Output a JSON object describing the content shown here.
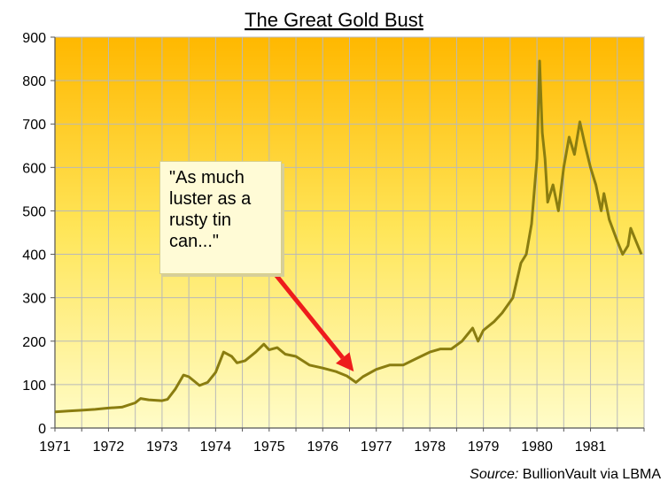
{
  "chart_data": {
    "type": "line",
    "title": "The Great Gold Bust",
    "xlabel": "",
    "ylabel": "",
    "xlim": [
      1971,
      1982
    ],
    "ylim": [
      0,
      900
    ],
    "x_ticks": [
      "1971",
      "1972",
      "1973",
      "1974",
      "1975",
      "1976",
      "1977",
      "1978",
      "1979",
      "1980",
      "1981"
    ],
    "y_ticks": [
      "0",
      "100",
      "200",
      "300",
      "400",
      "500",
      "600",
      "700",
      "800",
      "900"
    ],
    "grid": true,
    "series": [
      {
        "color": "#8a7d10",
        "points": [
          [
            1971.0,
            37
          ],
          [
            1971.25,
            39
          ],
          [
            1971.5,
            41
          ],
          [
            1971.75,
            43
          ],
          [
            1972.0,
            46
          ],
          [
            1972.25,
            48
          ],
          [
            1972.5,
            58
          ],
          [
            1972.6,
            68
          ],
          [
            1972.75,
            65
          ],
          [
            1973.0,
            63
          ],
          [
            1973.1,
            66
          ],
          [
            1973.25,
            90
          ],
          [
            1973.4,
            122
          ],
          [
            1973.5,
            118
          ],
          [
            1973.7,
            98
          ],
          [
            1973.85,
            105
          ],
          [
            1974.0,
            128
          ],
          [
            1974.15,
            175
          ],
          [
            1974.3,
            165
          ],
          [
            1974.4,
            150
          ],
          [
            1974.55,
            155
          ],
          [
            1974.75,
            175
          ],
          [
            1974.9,
            193
          ],
          [
            1975.0,
            180
          ],
          [
            1975.15,
            185
          ],
          [
            1975.3,
            170
          ],
          [
            1975.5,
            165
          ],
          [
            1975.75,
            145
          ],
          [
            1976.0,
            138
          ],
          [
            1976.25,
            130
          ],
          [
            1976.45,
            120
          ],
          [
            1976.62,
            105
          ],
          [
            1976.75,
            118
          ],
          [
            1977.0,
            135
          ],
          [
            1977.25,
            145
          ],
          [
            1977.5,
            145
          ],
          [
            1977.75,
            160
          ],
          [
            1978.0,
            175
          ],
          [
            1978.2,
            182
          ],
          [
            1978.4,
            182
          ],
          [
            1978.6,
            200
          ],
          [
            1978.8,
            230
          ],
          [
            1978.9,
            200
          ],
          [
            1979.0,
            225
          ],
          [
            1979.2,
            245
          ],
          [
            1979.35,
            265
          ],
          [
            1979.55,
            300
          ],
          [
            1979.7,
            380
          ],
          [
            1979.8,
            400
          ],
          [
            1979.9,
            470
          ],
          [
            1980.0,
            620
          ],
          [
            1980.05,
            845
          ],
          [
            1980.1,
            680
          ],
          [
            1980.15,
            620
          ],
          [
            1980.2,
            520
          ],
          [
            1980.3,
            560
          ],
          [
            1980.4,
            500
          ],
          [
            1980.5,
            600
          ],
          [
            1980.6,
            670
          ],
          [
            1980.7,
            630
          ],
          [
            1980.8,
            705
          ],
          [
            1980.9,
            650
          ],
          [
            1981.0,
            600
          ],
          [
            1981.1,
            560
          ],
          [
            1981.2,
            500
          ],
          [
            1981.25,
            540
          ],
          [
            1981.35,
            480
          ],
          [
            1981.5,
            430
          ],
          [
            1981.6,
            400
          ],
          [
            1981.7,
            420
          ],
          [
            1981.75,
            460
          ],
          [
            1981.85,
            430
          ],
          [
            1981.95,
            400
          ]
        ]
      }
    ],
    "annotation": {
      "text": "\"As much\nluster as a\nrusty tin\ncan...\"",
      "arrow_target": [
        1976.58,
        130
      ],
      "arrow_color": "#ee1c1c"
    },
    "source_label": "Source:",
    "source_text": "BullionVault via LBMA"
  }
}
